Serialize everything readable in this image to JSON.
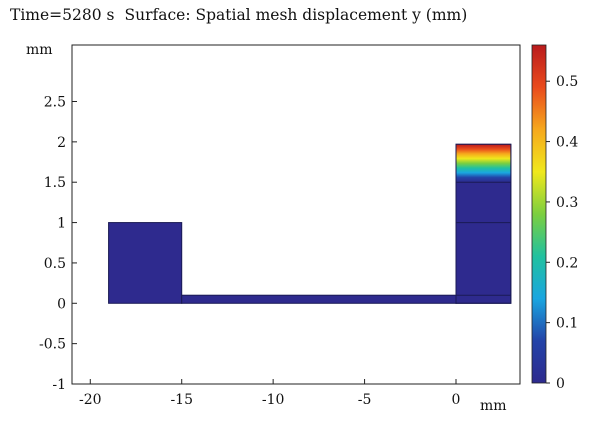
{
  "title": {
    "time": "Time=5280 s",
    "surface": "Surface: Spatial mesh displacement y (mm)"
  },
  "chart_data": {
    "type": "heatmap",
    "title": "Time=5280 s  Surface: Spatial mesh displacement y (mm)",
    "x_unit": "mm",
    "y_unit": "mm",
    "xlim": [
      -21,
      3.5
    ],
    "ylim": [
      -1,
      3.2
    ],
    "x_ticks": [
      -20,
      -15,
      -10,
      -5,
      0
    ],
    "y_ticks": [
      -1,
      -0.5,
      0,
      0.5,
      1,
      1.5,
      2,
      2.5
    ],
    "x_tick_labels": [
      "-20",
      "-15",
      "-10",
      "-5",
      "0"
    ],
    "y_tick_labels": [
      "-1",
      "-0.5",
      "0",
      "0.5",
      "1",
      "1.5",
      "2",
      "2.5"
    ],
    "domains": [
      {
        "name": "left-block",
        "x": [
          -19,
          -15
        ],
        "y": [
          0,
          1
        ]
      },
      {
        "name": "channel",
        "x": [
          -15,
          0
        ],
        "y": [
          0,
          0.1
        ]
      },
      {
        "name": "right-block",
        "x": [
          0,
          3
        ],
        "y": [
          0,
          1.97
        ],
        "inner_lines_y": [
          0.1,
          1.0,
          1.5
        ]
      }
    ],
    "displacement_field": {
      "region": "right-block",
      "gradient_start_y": 1.5,
      "top_y": 1.97,
      "max_value": 0.56
    },
    "colorbar": {
      "min": 0,
      "max": 0.56,
      "ticks": [
        0,
        0.1,
        0.2,
        0.3,
        0.4,
        0.5
      ],
      "tick_labels": [
        "0",
        "0.1",
        "0.2",
        "0.3",
        "0.4",
        "0.5"
      ],
      "colormap": [
        "#2e2a8e",
        "#2343a8",
        "#1aa6e0",
        "#21c19f",
        "#7ccf3f",
        "#f0e81c",
        "#f6a81c",
        "#e94a1c",
        "#b91a1c"
      ]
    }
  }
}
